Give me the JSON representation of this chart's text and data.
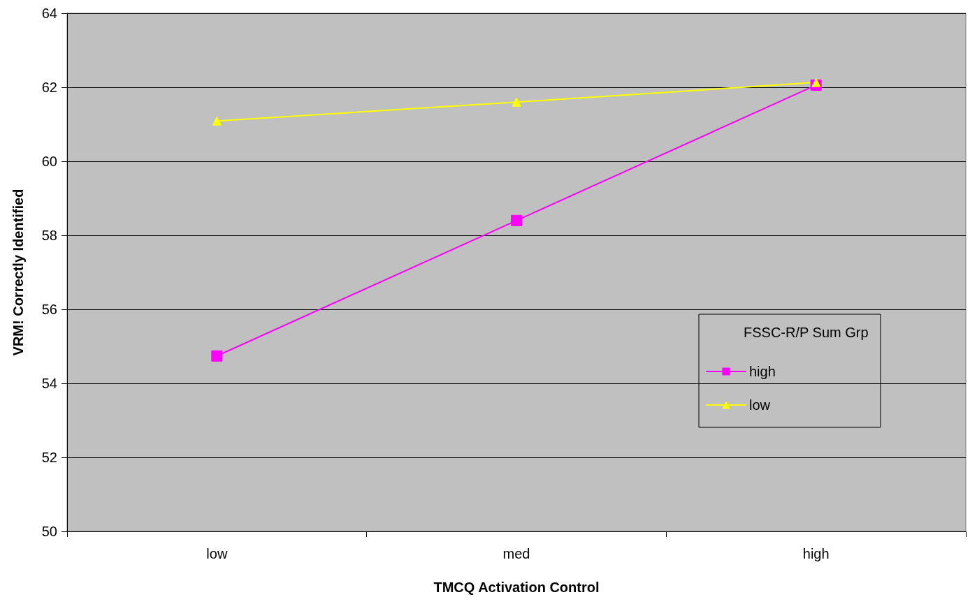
{
  "chart_data": {
    "type": "line",
    "xlabel": "TMCQ Activation Control",
    "ylabel": "VRM! Correctly Identified",
    "legend_title": "FSSC-R/P Sum Grp",
    "categories": [
      "low",
      "med",
      "high"
    ],
    "series": [
      {
        "name": "high",
        "color": "#ff00ff",
        "marker": "square",
        "values": [
          54.74,
          58.4,
          62.06
        ]
      },
      {
        "name": "low",
        "color": "#ffff00",
        "marker": "triangle",
        "values": [
          61.09,
          61.6,
          62.13
        ]
      }
    ],
    "ylim": [
      50,
      64
    ],
    "yticks": [
      50,
      52,
      54,
      56,
      58,
      60,
      62,
      64
    ],
    "grid": "y",
    "legend": "right"
  }
}
